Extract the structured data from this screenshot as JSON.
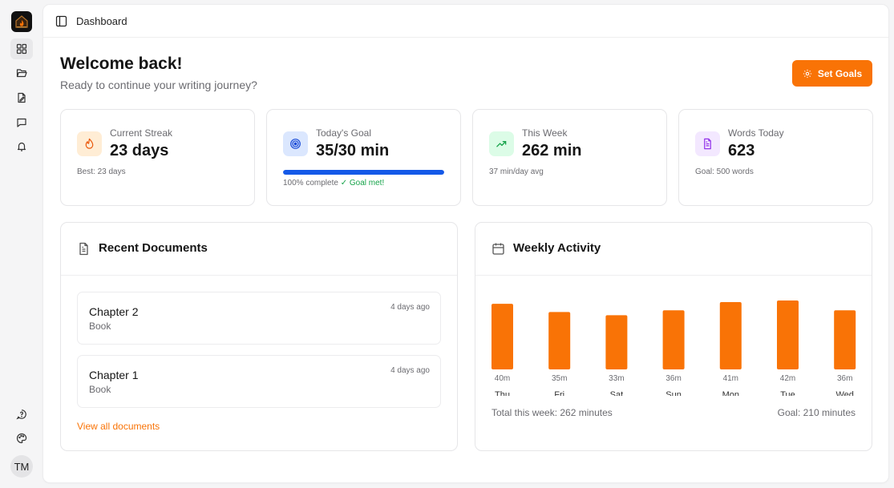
{
  "sidebar": {
    "items": [
      {
        "icon": "grid-icon",
        "active": true
      },
      {
        "icon": "folder-icon"
      },
      {
        "icon": "document-edit-icon"
      },
      {
        "icon": "message-icon"
      },
      {
        "icon": "bell-icon"
      }
    ],
    "bottom": [
      {
        "icon": "help-icon"
      },
      {
        "icon": "palette-icon"
      }
    ],
    "avatar_initials": "TM"
  },
  "topbar": {
    "breadcrumb": "Dashboard"
  },
  "header": {
    "title": "Welcome back!",
    "subtitle": "Ready to continue your writing journey?",
    "set_goals_label": "Set Goals"
  },
  "stats": [
    {
      "label": "Current Streak",
      "value": "23 days",
      "footer": "Best: 23 days",
      "icon": "flame-icon",
      "color": "#ea580c",
      "bg": "#ffedd5"
    },
    {
      "label": "Today's Goal",
      "value": "35/30 min",
      "progress": 1.0,
      "footer": "100% complete",
      "status": "✓ Goal met!",
      "icon": "target-icon",
      "color": "#1d4ed8",
      "bg": "#dbe7fe"
    },
    {
      "label": "This Week",
      "value": "262 min",
      "footer": "37 min/day avg",
      "icon": "trending-up-icon",
      "color": "#16a34a",
      "bg": "#dcfce7"
    },
    {
      "label": "Words Today",
      "value": "623",
      "footer": "Goal: 500 words",
      "icon": "file-text-icon",
      "color": "#9333ea",
      "bg": "#f3e8ff"
    }
  ],
  "recent_documents": {
    "title": "Recent Documents",
    "items": [
      {
        "name": "Chapter 2",
        "type": "Book",
        "time": "4 days ago"
      },
      {
        "name": "Chapter 1",
        "type": "Book",
        "time": "4 days ago"
      }
    ],
    "view_all": "View all documents"
  },
  "weekly_activity": {
    "title": "Weekly Activity",
    "total_label": "Total this week: 262 minutes",
    "goal_label": "Goal: 210 minutes"
  },
  "chart_data": {
    "type": "bar",
    "categories": [
      "Thu",
      "Fri",
      "Sat",
      "Sun",
      "Mon",
      "Tue",
      "Wed"
    ],
    "values": [
      40,
      35,
      33,
      36,
      41,
      42,
      36
    ],
    "value_labels": [
      "40m",
      "35m",
      "33m",
      "36m",
      "41m",
      "42m",
      "36m"
    ],
    "color": "#f97306",
    "ylim": [
      0,
      42
    ]
  }
}
